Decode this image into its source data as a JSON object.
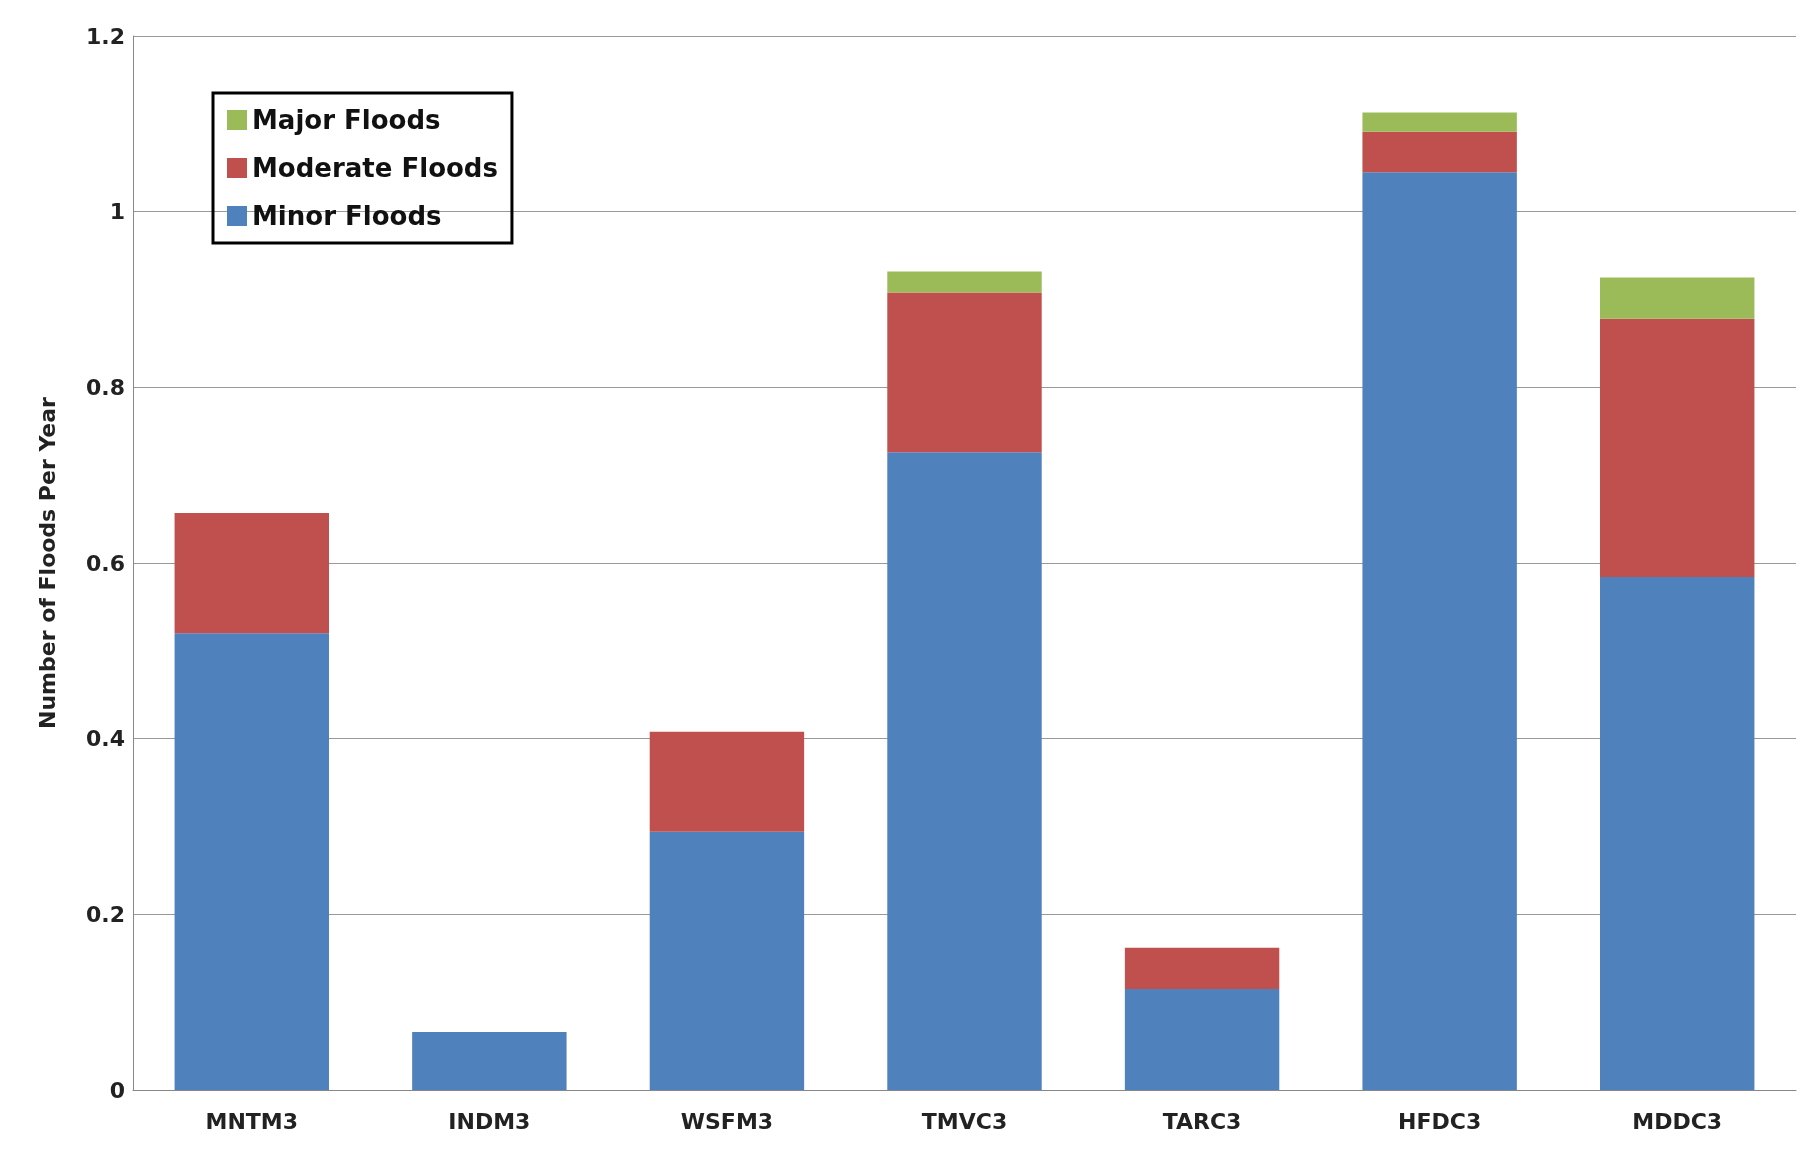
{
  "chart_data": {
    "type": "bar",
    "stacked": true,
    "ylabel": "Number of Floods Per Year",
    "categories": [
      "MNTM3",
      "INDM3",
      "WSFM3",
      "TMVC3",
      "TARC3",
      "HFDC3",
      "MDDC3"
    ],
    "series": [
      {
        "name": "Minor Floods",
        "color": "#4f81bd",
        "values": [
          0.52,
          0.066,
          0.294,
          0.726,
          0.115,
          1.045,
          0.584
        ]
      },
      {
        "name": "Moderate Floods",
        "color": "#c0504d",
        "values": [
          0.137,
          null,
          0.114,
          0.182,
          0.047,
          0.046,
          0.294
        ]
      },
      {
        "name": "Major Floods",
        "color": "#9bbb59",
        "values": [
          null,
          null,
          null,
          0.024,
          null,
          0.022,
          0.047
        ]
      }
    ],
    "ylim": [
      0,
      1.2
    ],
    "yticks": [
      0,
      0.2,
      0.4,
      0.6,
      0.8,
      1,
      1.2
    ],
    "grid": "y",
    "legend": "top left"
  }
}
